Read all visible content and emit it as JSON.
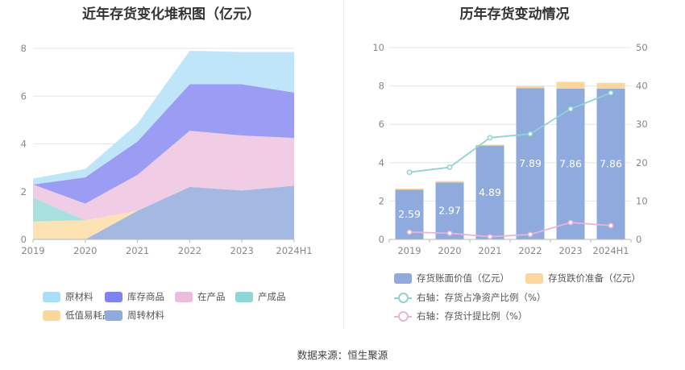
{
  "footer": {
    "source": "数据来源：恒生聚源"
  },
  "chart_data": [
    {
      "type": "area",
      "stacked": true,
      "title": "近年存货变化堆积图（亿元）",
      "categories": [
        "2019",
        "2020",
        "2021",
        "2022",
        "2023",
        "2024H1"
      ],
      "ylim": [
        0,
        8
      ],
      "yticks": [
        "0",
        "2",
        "4",
        "6",
        "8"
      ],
      "grid": true,
      "legend_position": "bottom",
      "series": [
        {
          "name": "周转材料",
          "color": "#a4b9e2",
          "values": [
            0.0,
            0.0,
            1.2,
            2.2,
            2.05,
            2.25
          ]
        },
        {
          "name": "低值易耗品",
          "color": "#fde2b3",
          "values": [
            0.75,
            0.8,
            0.0,
            0.0,
            0.0,
            0.0
          ]
        },
        {
          "name": "产成品",
          "color": "#a8e0e0",
          "values": [
            1.0,
            0.0,
            0.0,
            0.0,
            0.0,
            0.0
          ]
        },
        {
          "name": "在产品",
          "color": "#f0cde4",
          "values": [
            0.55,
            0.7,
            1.5,
            2.35,
            2.3,
            2.0
          ]
        },
        {
          "name": "库存商品",
          "color": "#9b9df5",
          "values": [
            0.0,
            1.1,
            1.4,
            1.95,
            2.15,
            1.9
          ]
        },
        {
          "name": "原材料",
          "color": "#bfe6f8",
          "values": [
            0.25,
            0.35,
            0.75,
            1.4,
            1.35,
            1.7
          ]
        }
      ],
      "legend_rows": [
        [
          {
            "name": "原材料",
            "color": "#a9dff6"
          },
          {
            "name": "库存商品",
            "color": "#7f82f1"
          },
          {
            "name": "在产品",
            "color": "#edbcdc"
          },
          {
            "name": "产成品",
            "color": "#8fd6d6"
          }
        ],
        [
          {
            "name": "低值易耗品",
            "color": "#fdd69a"
          },
          {
            "name": "周转材料",
            "color": "#8faadc"
          }
        ]
      ]
    },
    {
      "type": "bar",
      "stacked": true,
      "title": "历年存货变动情况",
      "categories": [
        "2019",
        "2020",
        "2021",
        "2022",
        "2023",
        "2024H1"
      ],
      "ylim": [
        0,
        10
      ],
      "yticks": [
        "0",
        "2",
        "4",
        "6",
        "8",
        "10"
      ],
      "y2lim": [
        0,
        50
      ],
      "y2ticks": [
        "0",
        "10",
        "20",
        "30",
        "40",
        "50"
      ],
      "grid": true,
      "legend_position": "bottom",
      "series": [
        {
          "name": "存货账面价值（亿元）",
          "color": "#8faadc",
          "values": [
            2.59,
            2.97,
            4.89,
            7.89,
            7.86,
            7.86
          ],
          "labels": [
            "2.59",
            "2.97",
            "4.89",
            "7.89",
            "7.86",
            "7.86"
          ]
        },
        {
          "name": "存货跌价准备（亿元）",
          "color": "#fdd69a",
          "values": [
            0.06,
            0.07,
            0.05,
            0.1,
            0.35,
            0.3
          ]
        }
      ],
      "lines": [
        {
          "name": "右轴：存货占净资产比例（%）",
          "color": "#8fd3d3",
          "axis": "right",
          "values": [
            17.5,
            18.8,
            26.5,
            27.5,
            34.0,
            38.2
          ]
        },
        {
          "name": "右轴：存货计提比例（%）",
          "color": "#e8b5d6",
          "axis": "right",
          "values": [
            1.9,
            1.6,
            0.7,
            1.3,
            4.4,
            3.6
          ]
        }
      ]
    }
  ]
}
